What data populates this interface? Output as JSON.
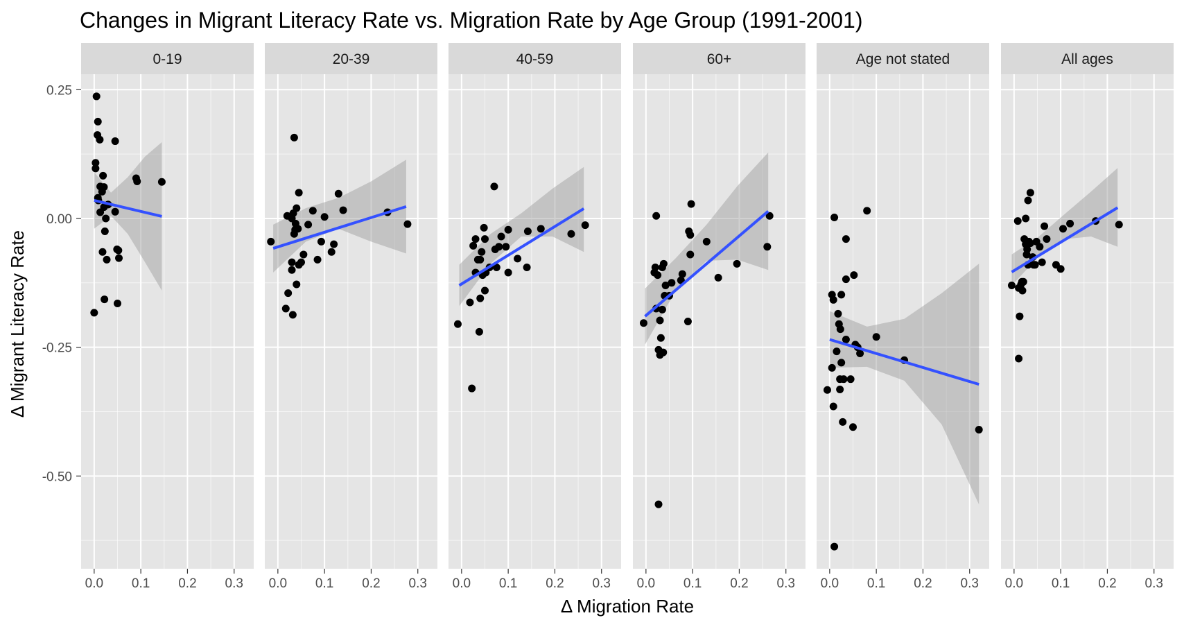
{
  "chart_data": {
    "type": "scatter",
    "title": "Changes in Migrant Literacy Rate vs. Migration Rate by Age Group (1991-2001)",
    "xlabel": "Δ Migration Rate",
    "ylabel": "Δ Migrant Literacy Rate",
    "xlim": [
      -0.028,
      0.342
    ],
    "ylim": [
      -0.68,
      0.28
    ],
    "x_ticks": [
      0.0,
      0.1,
      0.2,
      0.3
    ],
    "x_tick_labels": [
      "0.0",
      "0.1",
      "0.2",
      "0.3"
    ],
    "y_ticks": [
      0.25,
      0.0,
      -0.25,
      -0.5
    ],
    "y_tick_labels": [
      "0.25",
      "0.00",
      "-0.25",
      "-0.50"
    ],
    "grid": true,
    "fit": "linear regression with confidence band",
    "colors": {
      "panel_bg": "#e5e5e5",
      "strip_bg": "#d9d9d9",
      "grid": "#ffffff",
      "points": "#000000",
      "fit_line": "#3451ff",
      "band": "#999999"
    },
    "facets": [
      {
        "label": "0-19",
        "points": [
          [
            0.0,
            -0.183
          ],
          [
            0.005,
            0.237
          ],
          [
            0.003,
            0.108
          ],
          [
            0.003,
            0.097
          ],
          [
            0.008,
            0.188
          ],
          [
            0.007,
            0.162
          ],
          [
            0.012,
            0.153
          ],
          [
            0.009,
            0.035
          ],
          [
            0.013,
            0.062
          ],
          [
            0.019,
            0.083
          ],
          [
            0.017,
            0.052
          ],
          [
            0.021,
            0.061
          ],
          [
            0.013,
            0.012
          ],
          [
            0.021,
            0.022
          ],
          [
            0.025,
            0.0
          ],
          [
            0.023,
            -0.025
          ],
          [
            0.027,
            -0.08
          ],
          [
            0.018,
            -0.065
          ],
          [
            0.022,
            -0.157
          ],
          [
            0.045,
            0.15
          ],
          [
            0.03,
            0.027
          ],
          [
            0.045,
            0.013
          ],
          [
            0.049,
            -0.06
          ],
          [
            0.052,
            -0.062
          ],
          [
            0.053,
            -0.077
          ],
          [
            0.05,
            -0.165
          ],
          [
            0.09,
            0.078
          ],
          [
            0.092,
            0.072
          ],
          [
            0.145,
            0.071
          ],
          [
            0.008,
            0.04
          ]
        ],
        "fit": {
          "x": [
            0.0,
            0.145
          ],
          "y": [
            0.035,
            0.004
          ]
        },
        "band": {
          "x": [
            0.0,
            0.036,
            0.072,
            0.109,
            0.145
          ],
          "lower": [
            -0.02,
            0.005,
            -0.03,
            -0.085,
            -0.14
          ],
          "upper": [
            0.09,
            0.05,
            0.08,
            0.12,
            0.148
          ]
        }
      },
      {
        "label": "20-39",
        "points": [
          [
            -0.015,
            -0.045
          ],
          [
            0.035,
            0.157
          ],
          [
            0.02,
            0.005
          ],
          [
            0.03,
            0.0
          ],
          [
            0.033,
            0.01
          ],
          [
            0.038,
            -0.01
          ],
          [
            0.04,
            0.02
          ],
          [
            0.045,
            0.05
          ],
          [
            0.037,
            -0.022
          ],
          [
            0.035,
            -0.03
          ],
          [
            0.043,
            -0.02
          ],
          [
            0.055,
            -0.07
          ],
          [
            0.05,
            -0.085
          ],
          [
            0.045,
            -0.09
          ],
          [
            0.03,
            -0.085
          ],
          [
            0.03,
            -0.1
          ],
          [
            0.022,
            -0.145
          ],
          [
            0.017,
            -0.175
          ],
          [
            0.032,
            -0.187
          ],
          [
            0.04,
            -0.128
          ],
          [
            0.065,
            -0.012
          ],
          [
            0.075,
            0.015
          ],
          [
            0.085,
            -0.08
          ],
          [
            0.093,
            -0.045
          ],
          [
            0.1,
            0.003
          ],
          [
            0.115,
            -0.065
          ],
          [
            0.12,
            -0.05
          ],
          [
            0.13,
            0.048
          ],
          [
            0.14,
            0.016
          ],
          [
            0.235,
            0.012
          ],
          [
            0.278,
            -0.011
          ]
        ],
        "fit": {
          "x": [
            -0.01,
            0.275
          ],
          "y": [
            -0.058,
            0.023
          ]
        },
        "band": {
          "x": [
            -0.01,
            0.06,
            0.13,
            0.2,
            0.275
          ],
          "lower": [
            -0.105,
            -0.045,
            -0.02,
            -0.045,
            -0.068
          ],
          "upper": [
            -0.012,
            0.02,
            0.04,
            0.072,
            0.114
          ]
        }
      },
      {
        "label": "40-59",
        "points": [
          [
            -0.008,
            -0.205
          ],
          [
            0.018,
            -0.163
          ],
          [
            0.022,
            -0.33
          ],
          [
            0.025,
            -0.053
          ],
          [
            0.03,
            -0.04
          ],
          [
            0.03,
            -0.105
          ],
          [
            0.035,
            -0.08
          ],
          [
            0.038,
            -0.22
          ],
          [
            0.04,
            -0.08
          ],
          [
            0.04,
            -0.155
          ],
          [
            0.043,
            -0.065
          ],
          [
            0.045,
            -0.11
          ],
          [
            0.048,
            -0.018
          ],
          [
            0.05,
            -0.04
          ],
          [
            0.05,
            -0.14
          ],
          [
            0.052,
            -0.105
          ],
          [
            0.06,
            -0.095
          ],
          [
            0.07,
            0.062
          ],
          [
            0.072,
            -0.06
          ],
          [
            0.075,
            -0.095
          ],
          [
            0.08,
            -0.055
          ],
          [
            0.085,
            -0.035
          ],
          [
            0.095,
            -0.055
          ],
          [
            0.1,
            -0.105
          ],
          [
            0.1,
            -0.022
          ],
          [
            0.12,
            -0.078
          ],
          [
            0.14,
            -0.095
          ],
          [
            0.142,
            -0.025
          ],
          [
            0.17,
            -0.02
          ],
          [
            0.235,
            -0.03
          ],
          [
            0.265,
            -0.013
          ]
        ],
        "fit": {
          "x": [
            -0.005,
            0.262
          ],
          "y": [
            -0.13,
            0.019
          ]
        },
        "band": {
          "x": [
            -0.005,
            0.062,
            0.128,
            0.195,
            0.262
          ],
          "lower": [
            -0.17,
            -0.088,
            -0.035,
            -0.035,
            -0.065
          ],
          "upper": [
            -0.09,
            -0.03,
            0.01,
            0.058,
            0.1
          ]
        }
      },
      {
        "label": "60+",
        "points": [
          [
            -0.005,
            -0.203
          ],
          [
            0.018,
            -0.105
          ],
          [
            0.02,
            -0.095
          ],
          [
            0.022,
            0.005
          ],
          [
            0.022,
            -0.175
          ],
          [
            0.025,
            -0.11
          ],
          [
            0.027,
            -0.255
          ],
          [
            0.027,
            -0.555
          ],
          [
            0.03,
            -0.265
          ],
          [
            0.03,
            -0.198
          ],
          [
            0.032,
            -0.232
          ],
          [
            0.035,
            -0.095
          ],
          [
            0.035,
            -0.177
          ],
          [
            0.037,
            -0.26
          ],
          [
            0.038,
            -0.088
          ],
          [
            0.04,
            -0.15
          ],
          [
            0.042,
            -0.13
          ],
          [
            0.05,
            -0.15
          ],
          [
            0.055,
            -0.125
          ],
          [
            0.075,
            -0.12
          ],
          [
            0.078,
            -0.108
          ],
          [
            0.09,
            -0.2
          ],
          [
            0.092,
            -0.025
          ],
          [
            0.095,
            -0.07
          ],
          [
            0.095,
            -0.032
          ],
          [
            0.097,
            0.028
          ],
          [
            0.13,
            -0.045
          ],
          [
            0.155,
            -0.115
          ],
          [
            0.195,
            -0.088
          ],
          [
            0.26,
            -0.055
          ],
          [
            0.265,
            0.005
          ]
        ],
        "fit": {
          "x": [
            -0.002,
            0.262
          ],
          "y": [
            -0.19,
            0.014
          ]
        },
        "band": {
          "x": [
            -0.002,
            0.064,
            0.13,
            0.196,
            0.262
          ],
          "lower": [
            -0.245,
            -0.14,
            -0.082,
            -0.08,
            -0.1
          ],
          "upper": [
            -0.136,
            -0.077,
            -0.012,
            0.063,
            0.128
          ]
        }
      },
      {
        "label": "Age not stated",
        "points": [
          [
            -0.005,
            -0.333
          ],
          [
            0.005,
            -0.29
          ],
          [
            0.005,
            -0.148
          ],
          [
            0.008,
            -0.158
          ],
          [
            0.008,
            -0.365
          ],
          [
            0.01,
            0.002
          ],
          [
            0.01,
            -0.637
          ],
          [
            0.015,
            -0.258
          ],
          [
            0.018,
            -0.185
          ],
          [
            0.02,
            -0.205
          ],
          [
            0.022,
            -0.312
          ],
          [
            0.022,
            -0.332
          ],
          [
            0.023,
            -0.215
          ],
          [
            0.025,
            -0.148
          ],
          [
            0.025,
            -0.28
          ],
          [
            0.028,
            -0.395
          ],
          [
            0.03,
            -0.312
          ],
          [
            0.035,
            -0.118
          ],
          [
            0.035,
            -0.235
          ],
          [
            0.035,
            -0.04
          ],
          [
            0.045,
            -0.312
          ],
          [
            0.05,
            -0.405
          ],
          [
            0.052,
            -0.11
          ],
          [
            0.055,
            -0.245
          ],
          [
            0.06,
            -0.25
          ],
          [
            0.065,
            -0.262
          ],
          [
            0.08,
            0.015
          ],
          [
            0.1,
            -0.23
          ],
          [
            0.16,
            -0.275
          ],
          [
            0.32,
            -0.41
          ]
        ],
        "fit": {
          "x": [
            0.0,
            0.32
          ],
          "y": [
            -0.235,
            -0.322
          ]
        },
        "band": {
          "x": [
            0.0,
            0.08,
            0.16,
            0.24,
            0.32
          ],
          "lower": [
            -0.29,
            -0.288,
            -0.315,
            -0.4,
            -0.555
          ],
          "upper": [
            -0.18,
            -0.21,
            -0.195,
            -0.145,
            -0.088
          ]
        }
      },
      {
        "label": "All ages",
        "points": [
          [
            -0.005,
            -0.13
          ],
          [
            0.008,
            -0.005
          ],
          [
            0.01,
            -0.135
          ],
          [
            0.01,
            -0.272
          ],
          [
            0.012,
            -0.19
          ],
          [
            0.015,
            -0.128
          ],
          [
            0.017,
            -0.123
          ],
          [
            0.018,
            -0.14
          ],
          [
            0.02,
            -0.123
          ],
          [
            0.022,
            -0.04
          ],
          [
            0.025,
            0.0
          ],
          [
            0.025,
            -0.05
          ],
          [
            0.027,
            -0.07
          ],
          [
            0.028,
            -0.06
          ],
          [
            0.03,
            0.035
          ],
          [
            0.03,
            -0.09
          ],
          [
            0.032,
            -0.045
          ],
          [
            0.035,
            -0.048
          ],
          [
            0.035,
            0.05
          ],
          [
            0.04,
            -0.075
          ],
          [
            0.042,
            -0.09
          ],
          [
            0.045,
            -0.09
          ],
          [
            0.048,
            -0.045
          ],
          [
            0.055,
            -0.055
          ],
          [
            0.06,
            -0.085
          ],
          [
            0.065,
            -0.015
          ],
          [
            0.07,
            -0.04
          ],
          [
            0.09,
            -0.09
          ],
          [
            0.1,
            -0.098
          ],
          [
            0.105,
            -0.02
          ],
          [
            0.12,
            -0.01
          ],
          [
            0.175,
            -0.005
          ],
          [
            0.225,
            -0.012
          ]
        ],
        "fit": {
          "x": [
            -0.005,
            0.222
          ],
          "y": [
            -0.104,
            0.021
          ]
        },
        "band": {
          "x": [
            -0.005,
            0.052,
            0.108,
            0.165,
            0.222
          ],
          "lower": [
            -0.13,
            -0.075,
            -0.04,
            -0.035,
            -0.055
          ],
          "upper": [
            -0.07,
            -0.036,
            0.008,
            0.052,
            0.098
          ]
        }
      }
    ]
  }
}
